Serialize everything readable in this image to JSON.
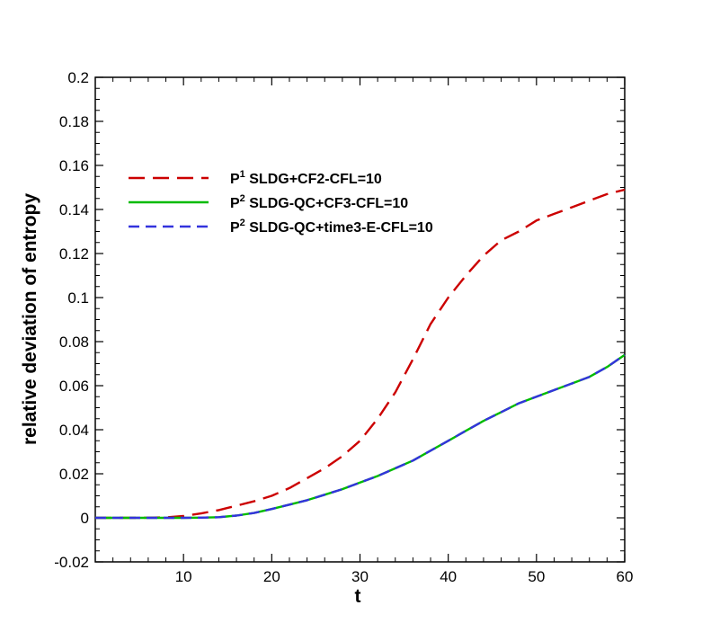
{
  "chart_data": {
    "type": "line",
    "title": "",
    "xlabel": "t",
    "ylabel": "relative deviation of entropy",
    "xlim": [
      0,
      60
    ],
    "ylim": [
      -0.02,
      0.2
    ],
    "x_ticks": [
      10,
      20,
      30,
      40,
      50,
      60
    ],
    "x_tick_labels": [
      "10",
      "20",
      "30",
      "40",
      "50",
      "60"
    ],
    "y_ticks": [
      -0.02,
      0,
      0.02,
      0.04,
      0.06,
      0.08,
      0.1,
      0.12,
      0.14,
      0.16,
      0.18,
      0.2
    ],
    "y_tick_labels": [
      "-0.02",
      "0",
      "0.02",
      "0.04",
      "0.06",
      "0.08",
      "0.1",
      "0.12",
      "0.14",
      "0.16",
      "0.18",
      "0.2"
    ],
    "grid": false,
    "legend_position": "upper-left",
    "series": [
      {
        "name": "SLDG+CF2-CFL=10",
        "legend_prefix": "P",
        "legend_sup": "1",
        "color": "#cc0000",
        "dash": "long-dash",
        "x": [
          0,
          5,
          8,
          10,
          12,
          14,
          16,
          18,
          20,
          22,
          24,
          26,
          28,
          30,
          32,
          34,
          36,
          38,
          40,
          42,
          44,
          46,
          48,
          50,
          52,
          54,
          56,
          58,
          60
        ],
        "y": [
          0,
          0,
          0.0002,
          0.0008,
          0.002,
          0.0035,
          0.0055,
          0.0075,
          0.01,
          0.0135,
          0.018,
          0.0225,
          0.028,
          0.035,
          0.045,
          0.057,
          0.072,
          0.088,
          0.1,
          0.11,
          0.119,
          0.126,
          0.13,
          0.135,
          0.138,
          0.141,
          0.144,
          0.147,
          0.149
        ]
      },
      {
        "name": "SLDG-QC+CF3-CFL=10",
        "legend_prefix": "P",
        "legend_sup": "2",
        "color": "#00bb00",
        "dash": "solid",
        "x": [
          0,
          10,
          12,
          14,
          16,
          18,
          20,
          22,
          24,
          26,
          28,
          30,
          32,
          34,
          36,
          38,
          40,
          42,
          44,
          46,
          48,
          50,
          52,
          54,
          56,
          58,
          60
        ],
        "y": [
          0,
          0,
          0.0001,
          0.0003,
          0.001,
          0.0022,
          0.004,
          0.006,
          0.008,
          0.0105,
          0.013,
          0.016,
          0.019,
          0.0225,
          0.026,
          0.0305,
          0.035,
          0.0395,
          0.044,
          0.048,
          0.052,
          0.055,
          0.058,
          0.061,
          0.064,
          0.0685,
          0.074
        ]
      },
      {
        "name": "SLDG-QC+time3-E-CFL=10",
        "legend_prefix": "P",
        "legend_sup": "2",
        "color": "#3333dd",
        "dash": "short-dash",
        "x": [
          0,
          10,
          12,
          14,
          16,
          18,
          20,
          22,
          24,
          26,
          28,
          30,
          32,
          34,
          36,
          38,
          40,
          42,
          44,
          46,
          48,
          50,
          52,
          54,
          56,
          58,
          60
        ],
        "y": [
          0,
          0,
          0.0001,
          0.0003,
          0.001,
          0.0022,
          0.004,
          0.006,
          0.008,
          0.0105,
          0.013,
          0.016,
          0.019,
          0.0225,
          0.026,
          0.0305,
          0.035,
          0.0395,
          0.044,
          0.048,
          0.052,
          0.055,
          0.058,
          0.061,
          0.064,
          0.0685,
          0.074
        ]
      }
    ]
  }
}
